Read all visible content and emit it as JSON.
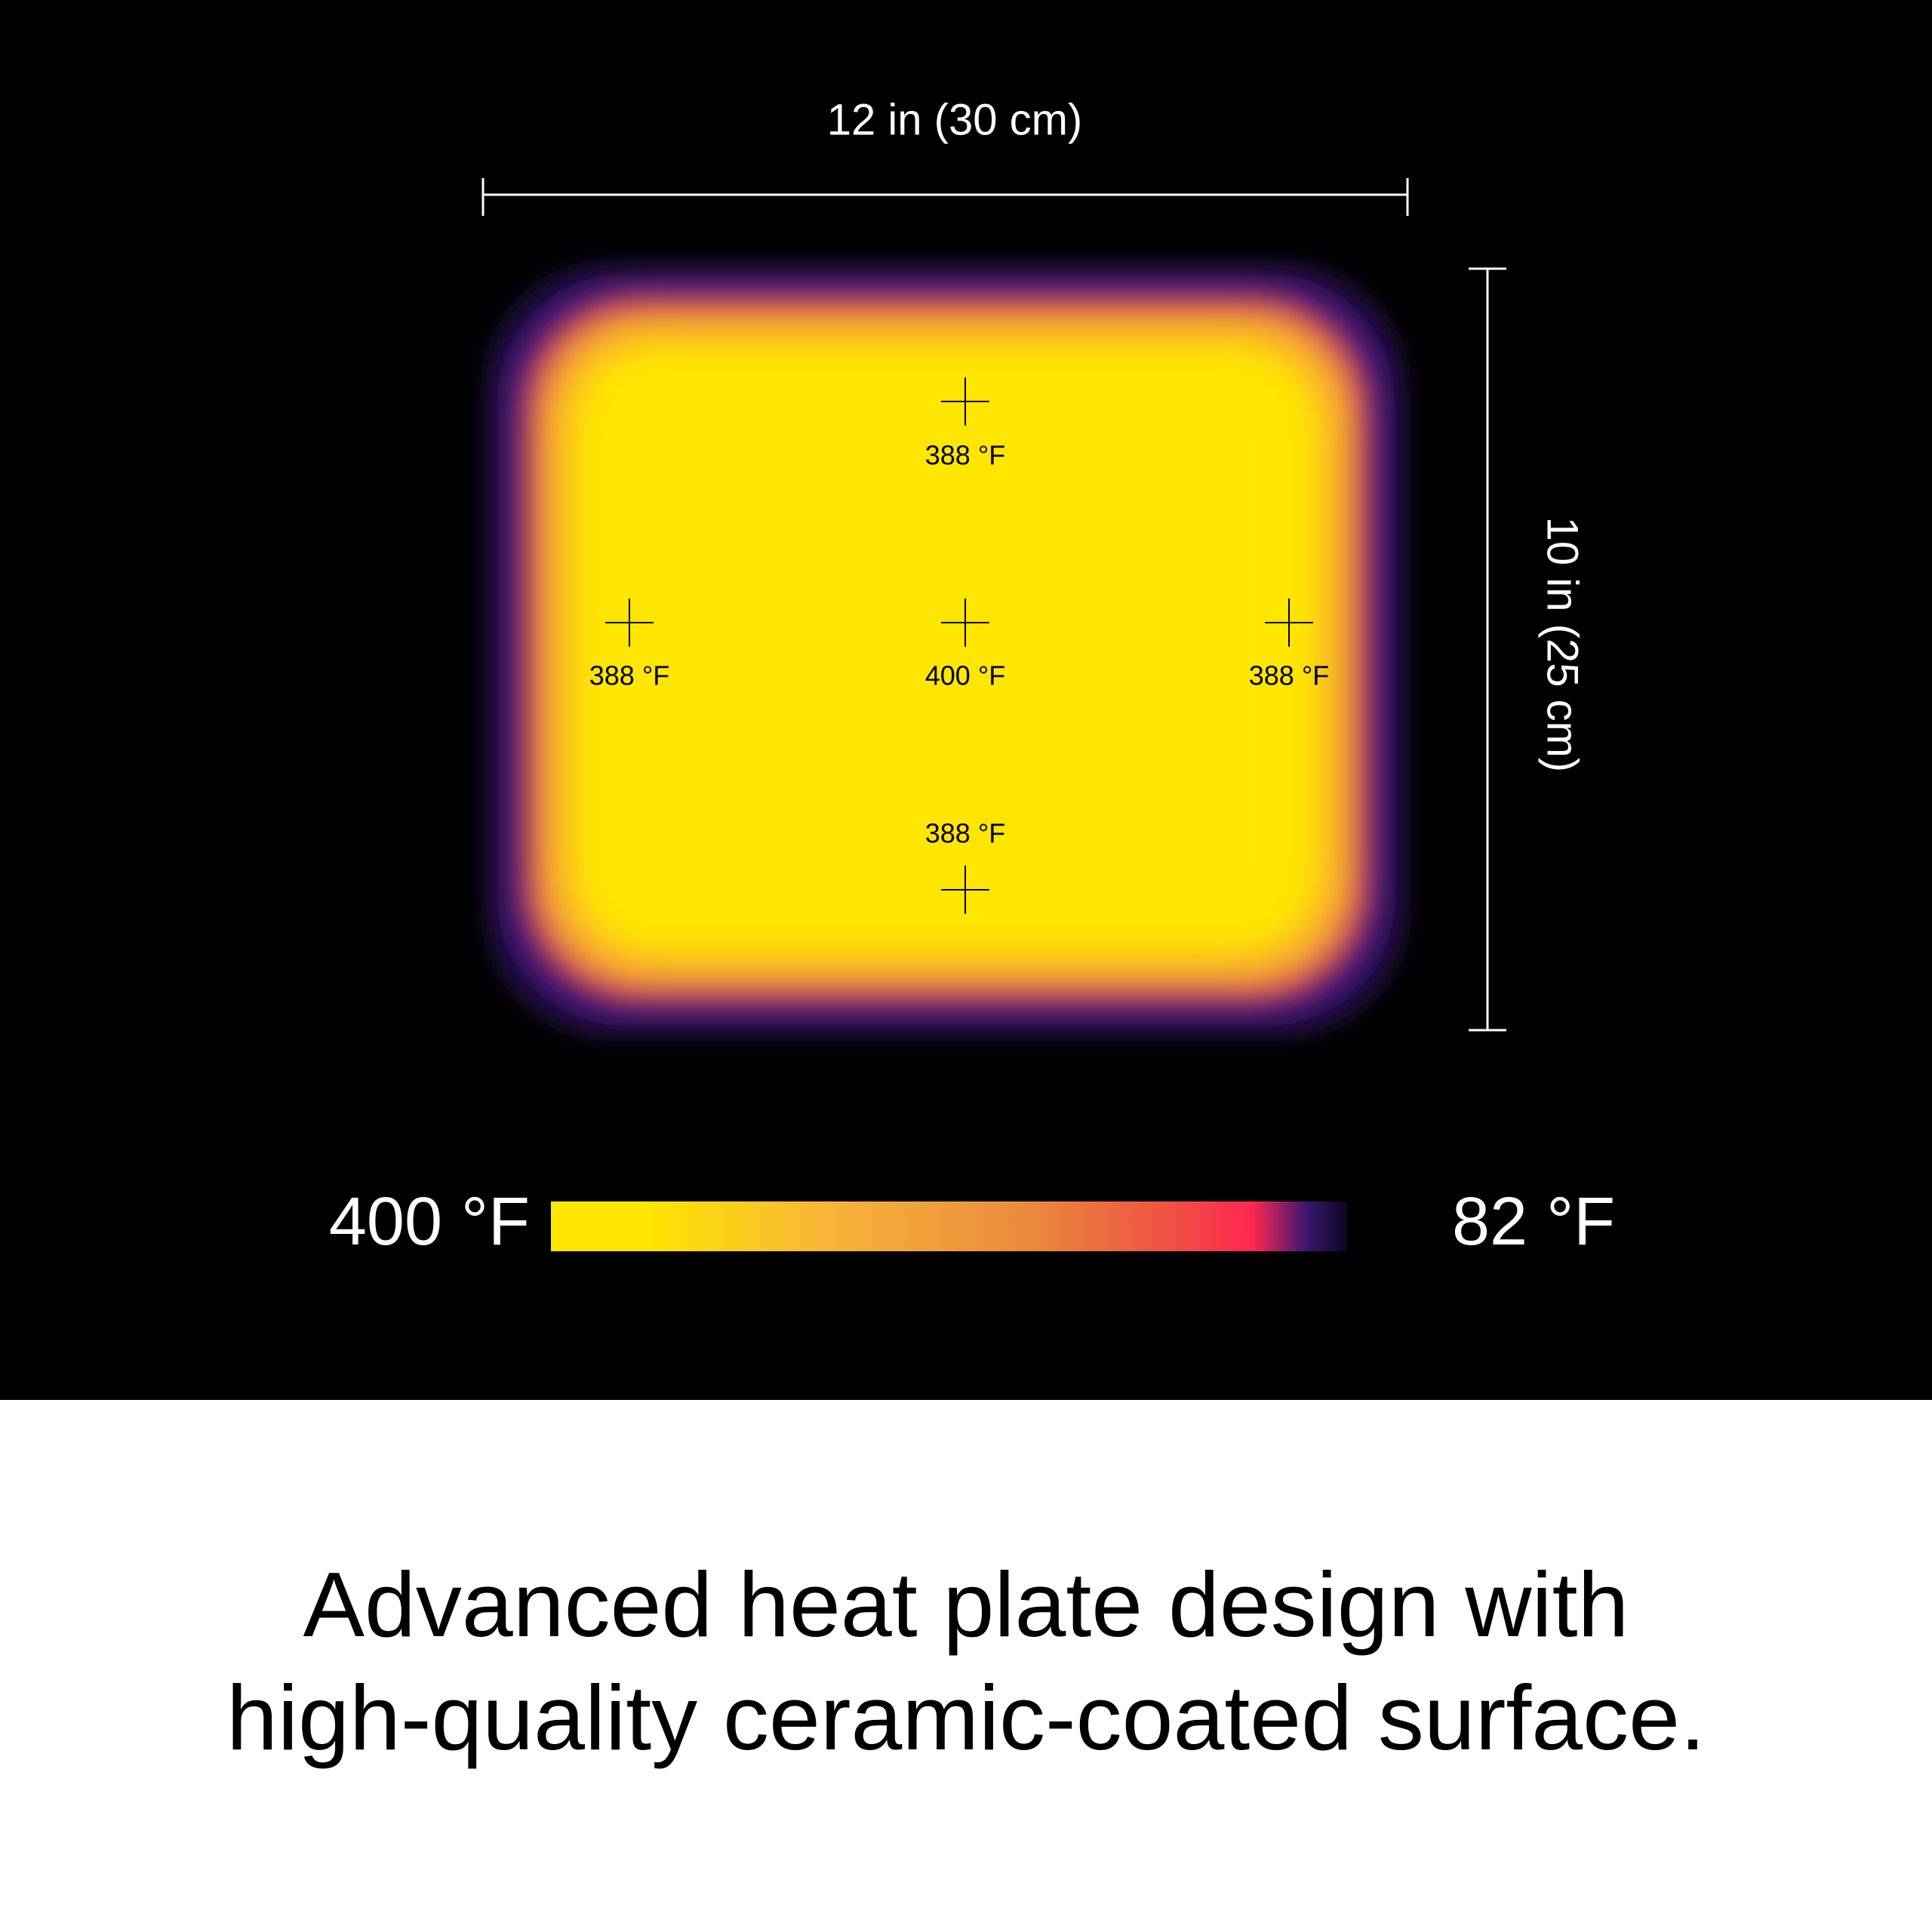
{
  "dimensions": {
    "width": "12 in (30 cm)",
    "height": "10 in (25 cm)"
  },
  "points": [
    {
      "label": "388 °F"
    },
    {
      "label": "388 °F"
    },
    {
      "label": "400 °F"
    },
    {
      "label": "388 °F"
    },
    {
      "label": "388 °F"
    }
  ],
  "legend": {
    "max": "400 °F",
    "min": "82 °F"
  },
  "caption": {
    "lines": [
      "Advanced heat plate design with",
      "high-quality ceramic-coated surface."
    ]
  }
}
